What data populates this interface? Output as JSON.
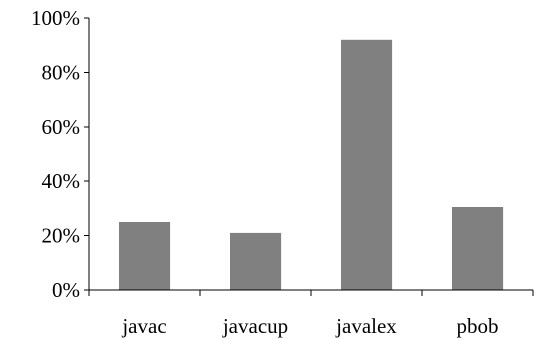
{
  "chart_data": {
    "type": "bar",
    "title": "",
    "xlabel": "",
    "ylabel": "",
    "categories": [
      "javac",
      "javacup",
      "javalex",
      "pbob"
    ],
    "values": [
      25,
      21,
      92,
      30.5
    ],
    "ylim": [
      0,
      100
    ],
    "yticks": [
      0,
      20,
      40,
      60,
      80,
      100
    ],
    "ytick_labels": [
      "0%",
      "20%",
      "40%",
      "60%",
      "80%",
      "100%"
    ],
    "grid": false,
    "legend": "none",
    "bar_color": "#808080"
  }
}
